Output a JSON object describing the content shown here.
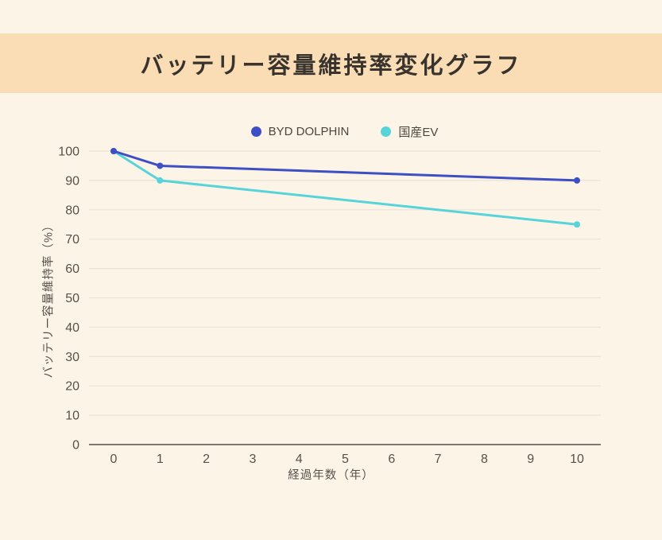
{
  "header": {
    "title": "バッテリー容量維持率変化グラフ"
  },
  "colors": {
    "page_background": "#fcf5e7",
    "banner_background": "#fadcb5",
    "title_text": "#38332c",
    "axis_text": "#56504a",
    "gridline": "#e9e2d6",
    "axis_line": "#57504a",
    "series_byd": "#3e4fc5",
    "series_kokusan": "#57d4da"
  },
  "chart_data": {
    "type": "line",
    "title": "バッテリー容量維持率変化グラフ",
    "xlabel": "経過年数（年）",
    "ylabel": "バッテリー容量維持率（%）",
    "xlim": [
      0,
      10
    ],
    "ylim": [
      0,
      100
    ],
    "xticks": [
      0,
      1,
      2,
      3,
      4,
      5,
      6,
      7,
      8,
      9,
      10
    ],
    "yticks": [
      0,
      10,
      20,
      30,
      40,
      50,
      60,
      70,
      80,
      90,
      100
    ],
    "grid": "horizontal",
    "legend_position": "top-center",
    "series": [
      {
        "id": "byd-dolphin",
        "name": "BYD DOLPHIN",
        "color": "#3e4fc5",
        "x": [
          0,
          1,
          10
        ],
        "values": [
          100,
          95,
          90
        ]
      },
      {
        "id": "kokusan-ev",
        "name": "国産EV",
        "color": "#57d4da",
        "x": [
          0,
          1,
          10
        ],
        "values": [
          100,
          90,
          75
        ]
      }
    ]
  }
}
